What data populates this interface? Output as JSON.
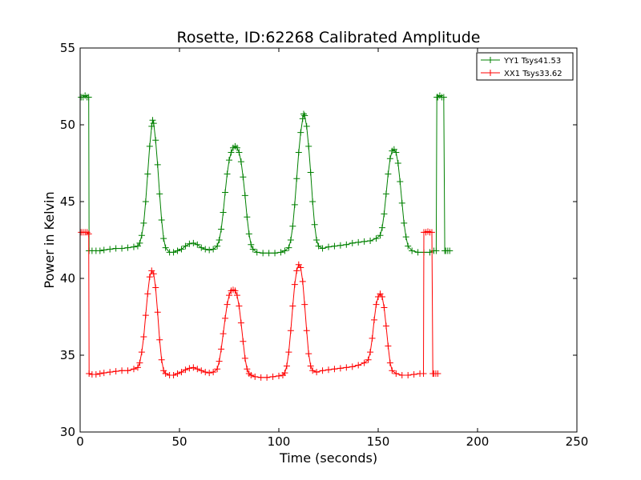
{
  "chart_data": {
    "type": "line",
    "title": "Rosette, ID:62268 Calibrated Amplitude",
    "xlabel": "Time (seconds)",
    "ylabel": "Power in Kelvin",
    "xlim": [
      0,
      250
    ],
    "ylim": [
      30,
      55
    ],
    "xticks": [
      0,
      50,
      100,
      150,
      200,
      250
    ],
    "yticks": [
      30,
      35,
      40,
      45,
      50,
      55
    ],
    "grid": false,
    "legend_position": "top-right",
    "marker": "+",
    "series": [
      {
        "name": "YY1 Tsys41.53",
        "color": "#008000",
        "points": [
          [
            0.5,
            51.8
          ],
          [
            1.5,
            51.8
          ],
          [
            2.5,
            51.9
          ],
          [
            3.5,
            51.8
          ],
          [
            4.3,
            51.8
          ],
          [
            4.5,
            41.8
          ],
          [
            6,
            41.8
          ],
          [
            8,
            41.8
          ],
          [
            10,
            41.8
          ],
          [
            12,
            41.85
          ],
          [
            15,
            41.9
          ],
          [
            18,
            41.95
          ],
          [
            21,
            41.95
          ],
          [
            24,
            42.0
          ],
          [
            27,
            42.05
          ],
          [
            29,
            42.1
          ],
          [
            30,
            42.3
          ],
          [
            31,
            42.8
          ],
          [
            32,
            43.6
          ],
          [
            33,
            45.0
          ],
          [
            34,
            46.8
          ],
          [
            35,
            48.6
          ],
          [
            36,
            49.9
          ],
          [
            36.5,
            50.3
          ],
          [
            37,
            50.1
          ],
          [
            38,
            49.0
          ],
          [
            39,
            47.4
          ],
          [
            40,
            45.5
          ],
          [
            41,
            43.8
          ],
          [
            42,
            42.6
          ],
          [
            43,
            42.0
          ],
          [
            45,
            41.7
          ],
          [
            47,
            41.7
          ],
          [
            49,
            41.8
          ],
          [
            51,
            41.9
          ],
          [
            53,
            42.1
          ],
          [
            55,
            42.25
          ],
          [
            57,
            42.3
          ],
          [
            59,
            42.2
          ],
          [
            61,
            42.0
          ],
          [
            63,
            41.9
          ],
          [
            65,
            41.85
          ],
          [
            67,
            41.9
          ],
          [
            69,
            42.1
          ],
          [
            70,
            42.5
          ],
          [
            71,
            43.2
          ],
          [
            72,
            44.3
          ],
          [
            73,
            45.6
          ],
          [
            74,
            46.8
          ],
          [
            75,
            47.7
          ],
          [
            76,
            48.2
          ],
          [
            77,
            48.5
          ],
          [
            78,
            48.6
          ],
          [
            79,
            48.5
          ],
          [
            80,
            48.2
          ],
          [
            81,
            47.6
          ],
          [
            82,
            46.6
          ],
          [
            83,
            45.4
          ],
          [
            84,
            44.0
          ],
          [
            85,
            42.9
          ],
          [
            86,
            42.2
          ],
          [
            87,
            41.9
          ],
          [
            89,
            41.7
          ],
          [
            92,
            41.65
          ],
          [
            95,
            41.65
          ],
          [
            98,
            41.65
          ],
          [
            101,
            41.7
          ],
          [
            103,
            41.8
          ],
          [
            105,
            42.0
          ],
          [
            106,
            42.5
          ],
          [
            107,
            43.4
          ],
          [
            108,
            44.8
          ],
          [
            109,
            46.5
          ],
          [
            110,
            48.2
          ],
          [
            111,
            49.5
          ],
          [
            112,
            50.4
          ],
          [
            112.5,
            50.7
          ],
          [
            113,
            50.6
          ],
          [
            114,
            49.9
          ],
          [
            115,
            48.6
          ],
          [
            116,
            46.9
          ],
          [
            117,
            45.0
          ],
          [
            118,
            43.5
          ],
          [
            119,
            42.5
          ],
          [
            120,
            42.1
          ],
          [
            122,
            41.95
          ],
          [
            125,
            42.05
          ],
          [
            128,
            42.1
          ],
          [
            131,
            42.15
          ],
          [
            134,
            42.2
          ],
          [
            137,
            42.3
          ],
          [
            140,
            42.35
          ],
          [
            143,
            42.4
          ],
          [
            146,
            42.45
          ],
          [
            149,
            42.6
          ],
          [
            151,
            42.8
          ],
          [
            152,
            43.3
          ],
          [
            153,
            44.2
          ],
          [
            154,
            45.5
          ],
          [
            155,
            46.8
          ],
          [
            156,
            47.8
          ],
          [
            157,
            48.3
          ],
          [
            158,
            48.4
          ],
          [
            159,
            48.2
          ],
          [
            160,
            47.5
          ],
          [
            161,
            46.3
          ],
          [
            162,
            44.9
          ],
          [
            163,
            43.6
          ],
          [
            164,
            42.7
          ],
          [
            165,
            42.1
          ],
          [
            167,
            41.8
          ],
          [
            170,
            41.7
          ],
          [
            173,
            41.7
          ],
          [
            176,
            41.7
          ],
          [
            178,
            41.8
          ],
          [
            179.2,
            41.8
          ],
          [
            179.5,
            51.8
          ],
          [
            180,
            51.8
          ],
          [
            181,
            51.9
          ],
          [
            182,
            51.8
          ],
          [
            183,
            51.8
          ],
          [
            183.5,
            41.8
          ],
          [
            184,
            41.8
          ],
          [
            185,
            41.8
          ],
          [
            186,
            41.8
          ]
        ]
      },
      {
        "name": "XX1 Tsys33.62",
        "color": "#ff0000",
        "points": [
          [
            0.5,
            43.0
          ],
          [
            1.5,
            43.0
          ],
          [
            2.5,
            43.0
          ],
          [
            3.5,
            43.0
          ],
          [
            4.3,
            42.9
          ],
          [
            4.5,
            33.8
          ],
          [
            6,
            33.75
          ],
          [
            8,
            33.75
          ],
          [
            10,
            33.8
          ],
          [
            12,
            33.85
          ],
          [
            15,
            33.9
          ],
          [
            18,
            33.95
          ],
          [
            21,
            34.0
          ],
          [
            24,
            34.0
          ],
          [
            27,
            34.1
          ],
          [
            29,
            34.2
          ],
          [
            30,
            34.5
          ],
          [
            31,
            35.2
          ],
          [
            32,
            36.2
          ],
          [
            33,
            37.6
          ],
          [
            34,
            39.0
          ],
          [
            35,
            40.1
          ],
          [
            36,
            40.5
          ],
          [
            37,
            40.3
          ],
          [
            38,
            39.4
          ],
          [
            39,
            37.8
          ],
          [
            40,
            36.0
          ],
          [
            41,
            34.7
          ],
          [
            42,
            34.0
          ],
          [
            43,
            33.8
          ],
          [
            45,
            33.7
          ],
          [
            47,
            33.7
          ],
          [
            49,
            33.8
          ],
          [
            51,
            33.9
          ],
          [
            53,
            34.05
          ],
          [
            55,
            34.15
          ],
          [
            57,
            34.2
          ],
          [
            59,
            34.1
          ],
          [
            61,
            34.0
          ],
          [
            63,
            33.9
          ],
          [
            65,
            33.85
          ],
          [
            67,
            33.9
          ],
          [
            69,
            34.1
          ],
          [
            70,
            34.6
          ],
          [
            71,
            35.4
          ],
          [
            72,
            36.4
          ],
          [
            73,
            37.4
          ],
          [
            74,
            38.3
          ],
          [
            75,
            38.9
          ],
          [
            76,
            39.2
          ],
          [
            77,
            39.25
          ],
          [
            78,
            39.2
          ],
          [
            79,
            38.9
          ],
          [
            80,
            38.2
          ],
          [
            81,
            37.1
          ],
          [
            82,
            35.9
          ],
          [
            83,
            34.8
          ],
          [
            84,
            34.1
          ],
          [
            85,
            33.8
          ],
          [
            86,
            33.7
          ],
          [
            88,
            33.6
          ],
          [
            91,
            33.55
          ],
          [
            94,
            33.55
          ],
          [
            97,
            33.6
          ],
          [
            100,
            33.65
          ],
          [
            102,
            33.7
          ],
          [
            103,
            33.85
          ],
          [
            104,
            34.3
          ],
          [
            105,
            35.2
          ],
          [
            106,
            36.6
          ],
          [
            107,
            38.2
          ],
          [
            108,
            39.6
          ],
          [
            109,
            40.5
          ],
          [
            110,
            40.9
          ],
          [
            111,
            40.7
          ],
          [
            112,
            39.8
          ],
          [
            113,
            38.3
          ],
          [
            114,
            36.6
          ],
          [
            115,
            35.1
          ],
          [
            116,
            34.3
          ],
          [
            117,
            34.0
          ],
          [
            119,
            33.9
          ],
          [
            122,
            34.0
          ],
          [
            125,
            34.05
          ],
          [
            128,
            34.1
          ],
          [
            131,
            34.15
          ],
          [
            134,
            34.2
          ],
          [
            137,
            34.25
          ],
          [
            140,
            34.35
          ],
          [
            143,
            34.5
          ],
          [
            145,
            34.7
          ],
          [
            146,
            35.2
          ],
          [
            147,
            36.1
          ],
          [
            148,
            37.3
          ],
          [
            149,
            38.3
          ],
          [
            150,
            38.8
          ],
          [
            151,
            39.0
          ],
          [
            152,
            38.8
          ],
          [
            153,
            38.1
          ],
          [
            154,
            36.9
          ],
          [
            155,
            35.6
          ],
          [
            156,
            34.5
          ],
          [
            157,
            34.0
          ],
          [
            159,
            33.8
          ],
          [
            162,
            33.7
          ],
          [
            165,
            33.7
          ],
          [
            168,
            33.75
          ],
          [
            171,
            33.8
          ],
          [
            172.8,
            33.8
          ],
          [
            173,
            43.0
          ],
          [
            174,
            43.0
          ],
          [
            175,
            43.05
          ],
          [
            176,
            43.0
          ],
          [
            177,
            43.0
          ],
          [
            177.5,
            33.8
          ],
          [
            178,
            33.8
          ],
          [
            179,
            33.8
          ],
          [
            180,
            33.8
          ]
        ]
      }
    ]
  }
}
